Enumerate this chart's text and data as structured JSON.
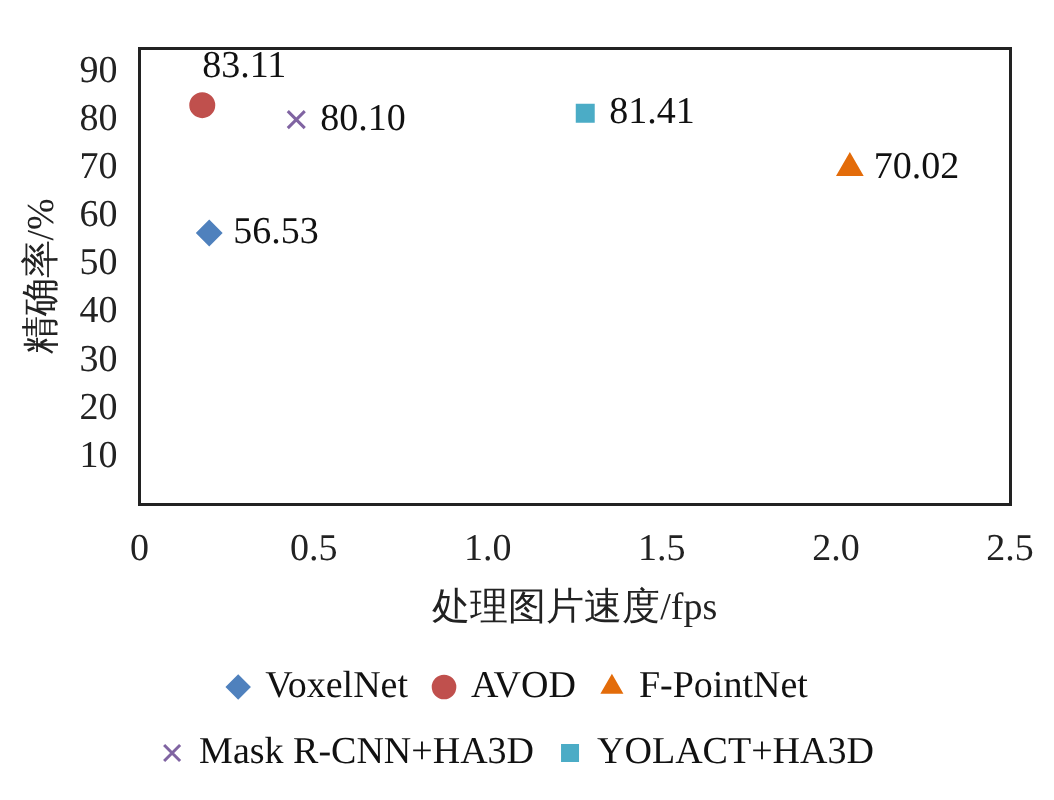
{
  "chart_data": {
    "type": "scatter",
    "xlabel": "处理图片速度/fps",
    "ylabel": "精确率/%",
    "xlim": [
      0,
      2.5
    ],
    "xticks": [
      0,
      {
        "value": 0.5,
        "label": "0.5"
      },
      {
        "value": 1,
        "label": "1.0"
      },
      {
        "value": 1.5,
        "label": "1.5"
      },
      {
        "value": 2,
        "label": "2.0"
      },
      {
        "value": 2.5,
        "label": "2.5"
      }
    ],
    "ylim": [
      0,
      95
    ],
    "yticks": [
      10,
      20,
      30,
      40,
      50,
      60,
      70,
      80,
      90
    ],
    "series": [
      {
        "name": "VoxelNet",
        "color": "#4f81bd",
        "marker": "diamond",
        "x": [
          0.2
        ],
        "values": [
          56.53
        ],
        "value_labels": [
          "56.53"
        ]
      },
      {
        "name": "AVOD",
        "color": "#c0504d",
        "marker": "circle",
        "x": [
          0.18
        ],
        "values": [
          83.11
        ],
        "value_labels": [
          "83.11"
        ]
      },
      {
        "name": "F-PointNet",
        "color": "#e36c0a",
        "marker": "triangle",
        "x": [
          2.04
        ],
        "values": [
          70.02
        ],
        "value_labels": [
          "70.02"
        ]
      },
      {
        "name": "Mask R-CNN+HA3D",
        "color": "#8064a2",
        "marker": "cross",
        "x": [
          0.45
        ],
        "values": [
          80.1
        ],
        "value_labels": [
          "80.10"
        ]
      },
      {
        "name": "YOLACT+HA3D",
        "color": "#4bacc6",
        "marker": "square",
        "x": [
          1.28
        ],
        "values": [
          81.41
        ],
        "value_labels": [
          "81.41"
        ]
      }
    ],
    "grid": false,
    "legend": "bottom"
  }
}
